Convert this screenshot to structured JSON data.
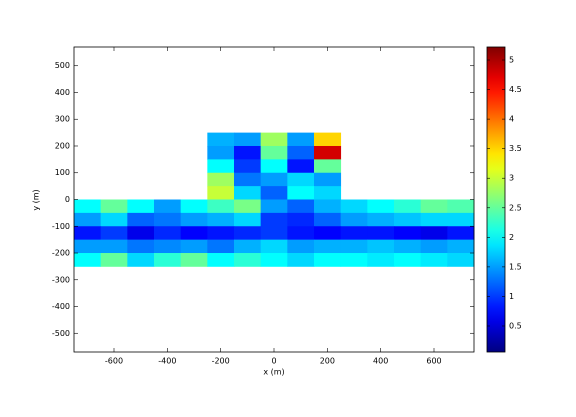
{
  "chart_data": {
    "type": "heatmap",
    "x_label": "x (m)",
    "y_label": "y (m)",
    "x": [
      -700,
      -600,
      -500,
      -400,
      -300,
      -200,
      -100,
      0,
      100,
      200,
      300,
      400,
      500,
      600,
      700
    ],
    "y": [
      225,
      175,
      125,
      75,
      25,
      -25,
      -75,
      -125,
      -175,
      -225
    ],
    "z": [
      [
        null,
        null,
        null,
        null,
        null,
        1.6,
        1.5,
        2.8,
        1.5,
        3.5,
        null,
        null,
        null,
        null,
        null
      ],
      [
        null,
        null,
        null,
        null,
        null,
        1.5,
        0.8,
        2.5,
        1.2,
        4.8,
        null,
        null,
        null,
        null,
        null
      ],
      [
        null,
        null,
        null,
        null,
        null,
        2.0,
        1.0,
        2.0,
        0.8,
        2.5,
        null,
        null,
        null,
        null,
        null
      ],
      [
        null,
        null,
        null,
        null,
        null,
        2.8,
        1.3,
        1.5,
        1.8,
        1.5,
        null,
        null,
        null,
        null,
        null
      ],
      [
        null,
        null,
        null,
        null,
        null,
        3.0,
        1.8,
        1.2,
        2.0,
        1.8,
        null,
        null,
        null,
        null,
        null
      ],
      [
        2.0,
        2.5,
        2.0,
        1.5,
        2.0,
        2.3,
        2.6,
        1.5,
        1.2,
        1.6,
        1.8,
        2.0,
        2.2,
        2.5,
        2.4
      ],
      [
        1.5,
        1.8,
        1.2,
        1.3,
        1.5,
        1.6,
        1.8,
        1.0,
        0.9,
        1.2,
        1.5,
        1.6,
        1.7,
        1.8,
        1.8
      ],
      [
        0.8,
        1.0,
        0.6,
        0.9,
        0.7,
        0.8,
        0.9,
        1.0,
        0.8,
        0.7,
        0.8,
        0.8,
        0.7,
        0.6,
        0.8
      ],
      [
        1.5,
        1.5,
        1.3,
        1.4,
        1.5,
        1.3,
        1.6,
        1.8,
        1.5,
        1.6,
        1.6,
        1.7,
        1.6,
        1.5,
        1.6
      ],
      [
        2.0,
        2.5,
        1.8,
        2.2,
        2.5,
        2.0,
        2.2,
        2.0,
        1.8,
        2.0,
        2.0,
        1.9,
        2.0,
        1.9,
        1.8
      ]
    ],
    "xlim": [
      -750,
      750
    ],
    "xticks": [
      -600,
      -400,
      -200,
      0,
      200,
      400,
      600
    ],
    "ylim": [
      -570,
      570
    ],
    "yticks": [
      -500,
      -400,
      -300,
      -200,
      -100,
      0,
      100,
      200,
      300,
      400,
      500
    ],
    "clim": [
      0.06,
      5.22
    ],
    "cticks": [
      0.5,
      1,
      1.5,
      2,
      2.5,
      3,
      3.5,
      4,
      4.5,
      5
    ],
    "colormap": "jet"
  }
}
